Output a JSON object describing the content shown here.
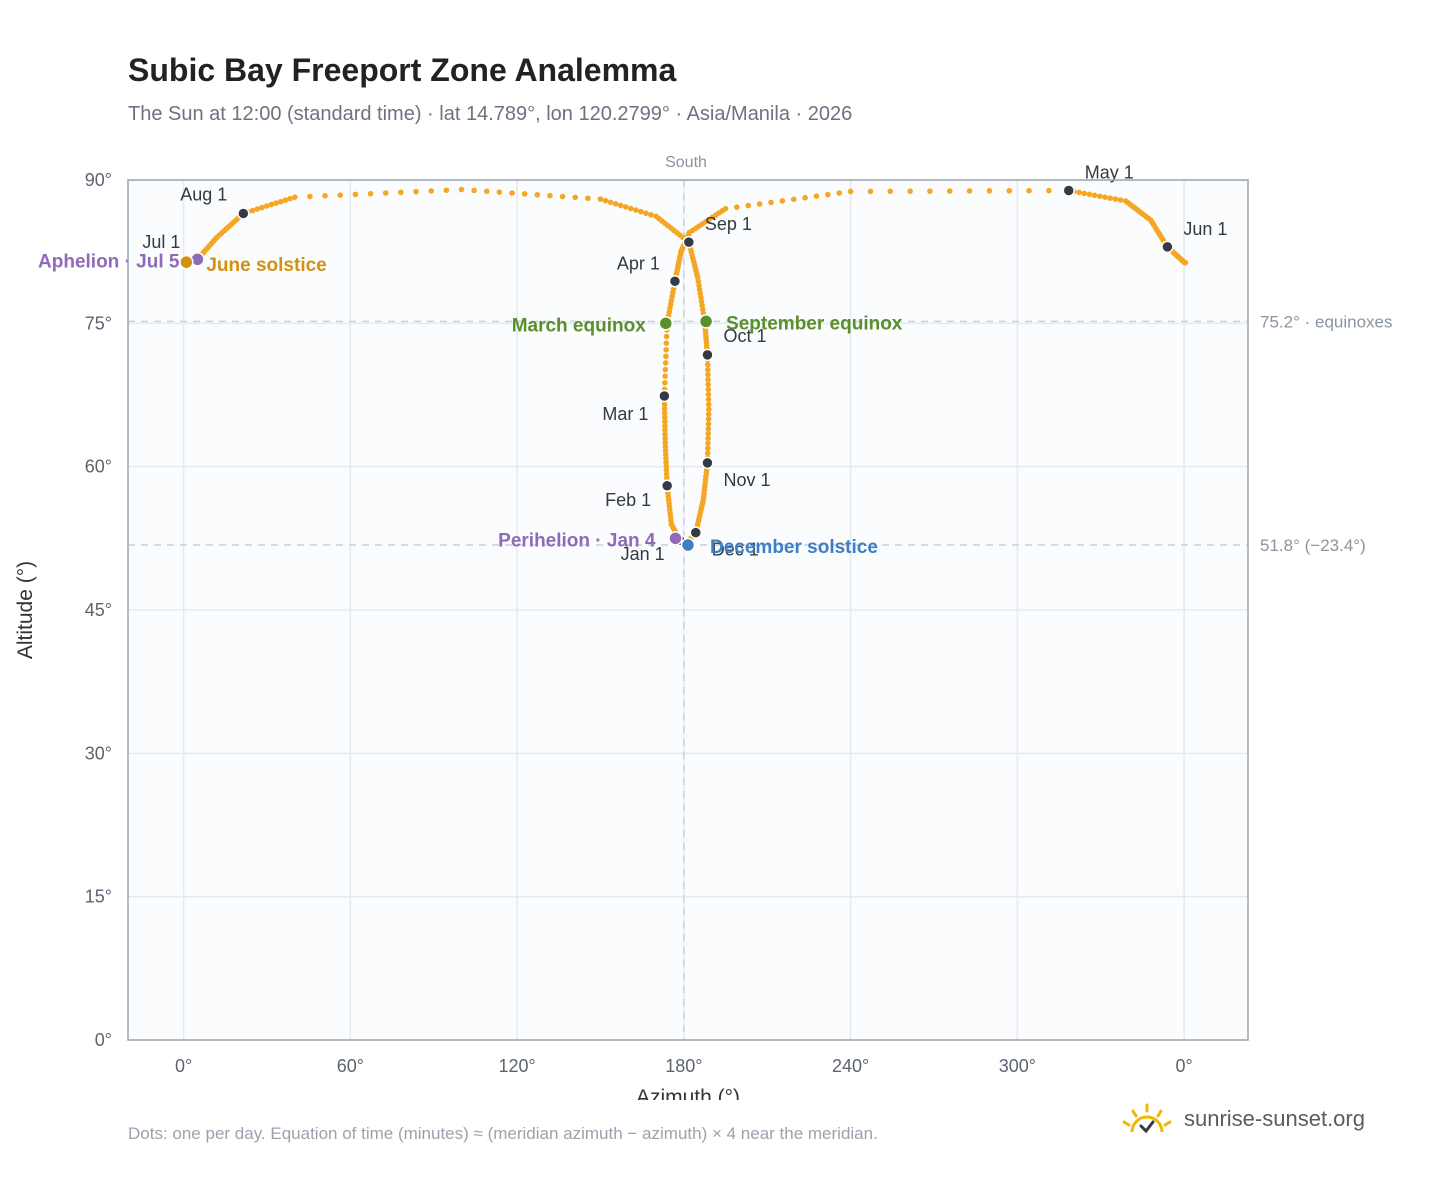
{
  "title": "Subic Bay Freeport Zone Analemma",
  "subtitle": "The Sun at 12:00 (standard time) · lat 14.789°, lon 120.2799° · Asia/Manila · 2026",
  "footnote": "Dots: one per day. Equation of time (minutes) ≈ (meridian azimuth − azimuth) × 4 near the meridian.",
  "brand": {
    "text": "sunrise-sunset.org",
    "icon": "sun-logo-icon"
  },
  "colors": {
    "curve": "#f5a623",
    "month_dot": "#343a45",
    "apsis": "#8e6bb8",
    "june_solstice": "#d4900e",
    "december_solstice": "#3d7fc2",
    "equinox": "#5a8f2e",
    "reference": "#c6d2de",
    "plot_bg": "#fafcfe"
  },
  "chart_data": {
    "type": "scatter",
    "xlabel": "Azimuth (°)",
    "ylabel": "Altitude (°)",
    "x_ticks": [
      "0°",
      "60°",
      "120°",
      "180°",
      "240°",
      "300°",
      "0°"
    ],
    "y_ticks": [
      "0°",
      "15°",
      "30°",
      "45°",
      "60°",
      "75°",
      "90°"
    ],
    "xlim": [
      -20,
      383
    ],
    "ylim": [
      0,
      90
    ],
    "grid": true,
    "south_label": "South",
    "reference_lines": [
      {
        "altitude": 75.2,
        "label": "75.2° · equinoxes"
      },
      {
        "altitude": 51.8,
        "label": "51.8° (−23.4°)"
      }
    ],
    "meridian_azimuth": 180,
    "curve_keypoints": [
      {
        "date": "Jan 1",
        "az": 178.5,
        "alt": 52.3
      },
      {
        "date": "Jan 15",
        "az": 175.5,
        "alt": 54.0
      },
      {
        "date": "Feb 1",
        "az": 174,
        "alt": 58.0
      },
      {
        "date": "Feb 15",
        "az": 173.3,
        "alt": 62.5
      },
      {
        "date": "Mar 1",
        "az": 173,
        "alt": 67.4
      },
      {
        "date": "Mar 20",
        "az": 174,
        "alt": 75.0
      },
      {
        "date": "Apr 1",
        "az": 176.8,
        "alt": 79.4
      },
      {
        "date": "Apr 10",
        "az": 179,
        "alt": 82.5
      },
      {
        "date": "Apr 15",
        "az": 182,
        "alt": 84.5
      },
      {
        "date": "Apr 20",
        "az": 195,
        "alt": 87.0
      },
      {
        "date": "Apr 25",
        "az": 240,
        "alt": 88.8
      },
      {
        "date": "May 1",
        "az": 318.5,
        "alt": 88.9
      },
      {
        "date": "May 10",
        "az": 339,
        "alt": 87.8
      },
      {
        "date": "May 20",
        "az": 348,
        "alt": 85.8
      },
      {
        "date": "Jun 1",
        "az": 354,
        "alt": 83.0
      },
      {
        "date": "Jun 21",
        "az": 360,
        "alt": 81.4
      },
      {
        "date": "Jul 1",
        "az": 1,
        "alt": 81.3
      },
      {
        "date": "Jul 5",
        "az": 5,
        "alt": 81.7
      },
      {
        "date": "Jul 15",
        "az": 12,
        "alt": 84.0
      },
      {
        "date": "Aug 1",
        "az": 21.5,
        "alt": 86.5
      },
      {
        "date": "Aug 10",
        "az": 40,
        "alt": 88.2
      },
      {
        "date": "Aug 18",
        "az": 100,
        "alt": 89.0
      },
      {
        "date": "Aug 24",
        "az": 150,
        "alt": 88.0
      },
      {
        "date": "Aug 28",
        "az": 170,
        "alt": 86.2
      },
      {
        "date": "Sep 1",
        "az": 181.8,
        "alt": 83.5
      },
      {
        "date": "Sep 10",
        "az": 185,
        "alt": 79.8
      },
      {
        "date": "Sep 22",
        "az": 187.5,
        "alt": 75.2
      },
      {
        "date": "Oct 1",
        "az": 188.5,
        "alt": 71.7
      },
      {
        "date": "Oct 15",
        "az": 189,
        "alt": 66.0
      },
      {
        "date": "Nov 1",
        "az": 188.5,
        "alt": 60.4
      },
      {
        "date": "Nov 15",
        "az": 187,
        "alt": 56.5
      },
      {
        "date": "Dec 1",
        "az": 184.3,
        "alt": 53.1
      },
      {
        "date": "Dec 21",
        "az": 180.5,
        "alt": 51.8
      },
      {
        "date": "Dec 31",
        "az": 178.5,
        "alt": 52.2
      }
    ],
    "month_markers": [
      {
        "label": "Jan 1",
        "az": 178.5,
        "alt": 52.3,
        "dx": -15,
        "dy": 20,
        "anchor": "end"
      },
      {
        "label": "Feb 1",
        "az": 174,
        "alt": 58.0,
        "dx": -16,
        "dy": 20,
        "anchor": "end"
      },
      {
        "label": "Mar 1",
        "az": 173,
        "alt": 67.4,
        "dx": -16,
        "dy": 24,
        "anchor": "end"
      },
      {
        "label": "Apr 1",
        "az": 176.8,
        "alt": 79.4,
        "dx": -15,
        "dy": -12,
        "anchor": "end"
      },
      {
        "label": "May 1",
        "az": 318.5,
        "alt": 88.9,
        "dx": 16,
        "dy": -12,
        "anchor": "start"
      },
      {
        "label": "Jun 1",
        "az": 354,
        "alt": 83.0,
        "dx": 16,
        "dy": -12,
        "anchor": "start"
      },
      {
        "label": "Jul 1",
        "az": 1,
        "alt": 81.3,
        "dx": -6,
        "dy": -15,
        "anchor": "end"
      },
      {
        "label": "Aug 1",
        "az": 21.5,
        "alt": 86.5,
        "dx": -16,
        "dy": -13,
        "anchor": "end"
      },
      {
        "label": "Sep 1",
        "az": 181.8,
        "alt": 83.5,
        "dx": 16,
        "dy": -12,
        "anchor": "start"
      },
      {
        "label": "Oct 1",
        "az": 188.5,
        "alt": 71.7,
        "dx": 16,
        "dy": -13,
        "anchor": "start"
      },
      {
        "label": "Nov 1",
        "az": 188.5,
        "alt": 60.4,
        "dx": 16,
        "dy": 23,
        "anchor": "start"
      },
      {
        "label": "Dec 1",
        "az": 184.3,
        "alt": 53.1,
        "dx": 16,
        "dy": 23,
        "anchor": "start"
      }
    ],
    "events": [
      {
        "label": "Aphelion · Jul 5",
        "az": 5,
        "alt": 81.7,
        "color": "apsis",
        "dx": -18,
        "dy": 8,
        "anchor": "end"
      },
      {
        "label": "June solstice",
        "az": 1,
        "alt": 81.4,
        "color": "june_solstice",
        "dx": 20,
        "dy": 9,
        "anchor": "start"
      },
      {
        "label": "Perihelion · Jan 4",
        "az": 177,
        "alt": 52.5,
        "color": "apsis",
        "dx": -20,
        "dy": 8,
        "anchor": "end"
      },
      {
        "label": "December solstice",
        "az": 181.5,
        "alt": 51.8,
        "color": "december_solstice",
        "dx": 22,
        "dy": 8,
        "anchor": "start"
      },
      {
        "label": "March equinox",
        "az": 173.5,
        "alt": 75.0,
        "color": "equinox",
        "dx": -20,
        "dy": 8,
        "anchor": "end"
      },
      {
        "label": "September equinox",
        "az": 188,
        "alt": 75.2,
        "color": "equinox",
        "dx": 20,
        "dy": 8,
        "anchor": "start"
      }
    ]
  }
}
